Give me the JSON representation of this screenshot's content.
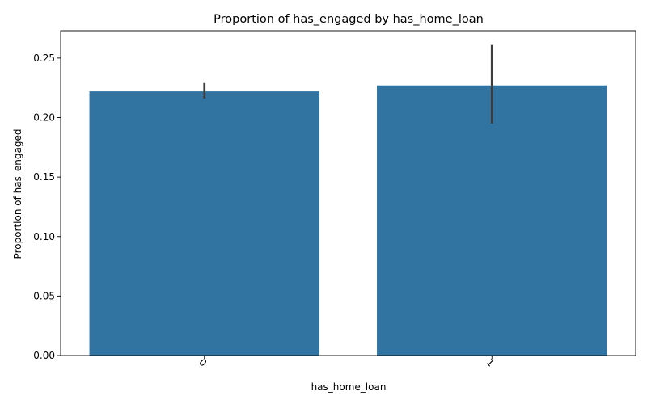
{
  "chart_data": {
    "type": "bar",
    "title": "Proportion of has_engaged by has_home_loan",
    "xlabel": "has_home_loan",
    "ylabel": "Proportion of has_engaged",
    "categories": [
      "0",
      "1"
    ],
    "values": [
      0.222,
      0.227
    ],
    "error_bars": [
      {
        "low": 0.216,
        "high": 0.229
      },
      {
        "low": 0.195,
        "high": 0.261
      }
    ],
    "ylim": [
      0,
      0.273
    ],
    "yticks": [
      {
        "value": 0.0,
        "label": "0.00"
      },
      {
        "value": 0.05,
        "label": "0.05"
      },
      {
        "value": 0.1,
        "label": "0.10"
      },
      {
        "value": 0.15,
        "label": "0.15"
      },
      {
        "value": 0.2,
        "label": "0.20"
      },
      {
        "value": 0.25,
        "label": "0.25"
      }
    ],
    "grid": false,
    "legend": "none",
    "bar_color": "#3274a1",
    "errorbar_color": "#3d3d3d",
    "x_tick_rotation_deg": 45
  }
}
